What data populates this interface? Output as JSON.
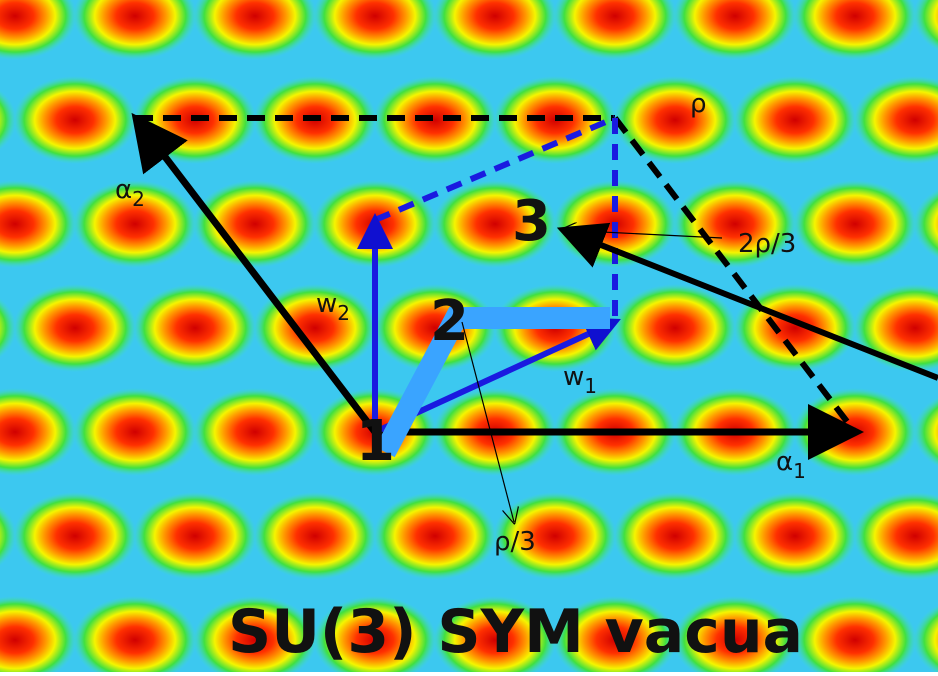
{
  "title": "SU(3) SYM vacua",
  "vacua": [
    "1",
    "2",
    "3"
  ],
  "alpha_1": {
    "symbol": "α",
    "sub": "1"
  },
  "alpha_2": {
    "symbol": "α",
    "sub": "2"
  },
  "w_1": {
    "symbol": "w",
    "sub": "1"
  },
  "w_2": {
    "symbol": "w",
    "sub": "2"
  },
  "rho": "ρ",
  "two_rho_over_3": "2ρ/3",
  "rho_over_3": "ρ/3"
}
